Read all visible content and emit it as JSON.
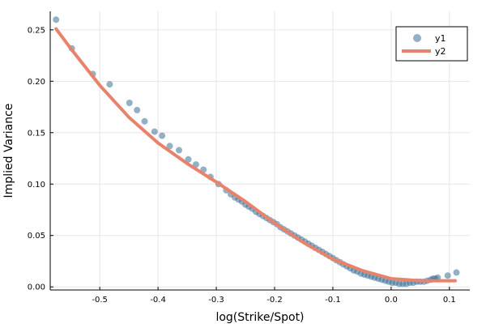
{
  "chart_data": {
    "type": "scatter",
    "title": "",
    "xlabel": "log(Strike/Spot)",
    "ylabel": "Implied Variance",
    "xlim": [
      -0.585,
      0.135
    ],
    "ylim": [
      -0.003,
      0.268
    ],
    "xticks": [
      -0.5,
      -0.4,
      -0.3,
      -0.2,
      -0.1,
      0.0,
      0.1
    ],
    "xtick_labels": [
      "-0.5",
      "-0.4",
      "-0.3",
      "-0.2",
      "-0.1",
      "0.0",
      "0.1"
    ],
    "yticks": [
      0.0,
      0.05,
      0.1,
      0.15,
      0.2,
      0.25
    ],
    "ytick_labels": [
      "0.00",
      "0.05",
      "0.10",
      "0.15",
      "0.20",
      "0.25"
    ],
    "grid": true,
    "legend_position": "top-right",
    "series": [
      {
        "name": "y1",
        "kind": "scatter",
        "color": "#3a6f96",
        "x": [
          -0.575,
          -0.548,
          -0.512,
          -0.483,
          -0.449,
          -0.436,
          -0.423,
          -0.406,
          -0.393,
          -0.38,
          -0.364,
          -0.348,
          -0.335,
          -0.322,
          -0.31,
          -0.296,
          -0.283,
          -0.275,
          -0.268,
          -0.262,
          -0.256,
          -0.25,
          -0.244,
          -0.238,
          -0.232,
          -0.226,
          -0.22,
          -0.214,
          -0.208,
          -0.202,
          -0.196,
          -0.19,
          -0.184,
          -0.178,
          -0.172,
          -0.166,
          -0.16,
          -0.154,
          -0.148,
          -0.142,
          -0.136,
          -0.13,
          -0.124,
          -0.118,
          -0.112,
          -0.106,
          -0.1,
          -0.094,
          -0.088,
          -0.082,
          -0.076,
          -0.07,
          -0.064,
          -0.058,
          -0.052,
          -0.046,
          -0.04,
          -0.034,
          -0.028,
          -0.022,
          -0.016,
          -0.01,
          -0.004,
          0.002,
          0.008,
          0.014,
          0.02,
          0.026,
          0.032,
          0.038,
          0.044,
          0.05,
          0.056,
          0.062,
          0.068,
          0.072,
          0.076,
          0.08,
          0.097,
          0.112
        ],
        "y": [
          0.26,
          0.232,
          0.207,
          0.197,
          0.179,
          0.172,
          0.161,
          0.151,
          0.147,
          0.137,
          0.133,
          0.124,
          0.119,
          0.114,
          0.107,
          0.1,
          0.094,
          0.09,
          0.087,
          0.085,
          0.083,
          0.08,
          0.078,
          0.076,
          0.073,
          0.071,
          0.069,
          0.067,
          0.065,
          0.063,
          0.061,
          0.058,
          0.056,
          0.054,
          0.052,
          0.05,
          0.048,
          0.046,
          0.044,
          0.042,
          0.04,
          0.038,
          0.036,
          0.034,
          0.032,
          0.03,
          0.028,
          0.026,
          0.024,
          0.022,
          0.02,
          0.018,
          0.016,
          0.015,
          0.013,
          0.012,
          0.011,
          0.01,
          0.009,
          0.008,
          0.007,
          0.006,
          0.005,
          0.004,
          0.004,
          0.003,
          0.003,
          0.003,
          0.004,
          0.004,
          0.005,
          0.005,
          0.005,
          0.006,
          0.007,
          0.008,
          0.008,
          0.009,
          0.011,
          0.014
        ]
      },
      {
        "name": "y2",
        "kind": "line",
        "color": "#e9826b",
        "x": [
          -0.575,
          -0.55,
          -0.5,
          -0.45,
          -0.4,
          -0.35,
          -0.3,
          -0.25,
          -0.2,
          -0.15,
          -0.1,
          -0.05,
          0.0,
          0.05,
          0.11
        ],
        "y": [
          0.251,
          0.232,
          0.196,
          0.165,
          0.14,
          0.12,
          0.102,
          0.083,
          0.062,
          0.043,
          0.027,
          0.016,
          0.008,
          0.006,
          0.006
        ]
      }
    ]
  }
}
